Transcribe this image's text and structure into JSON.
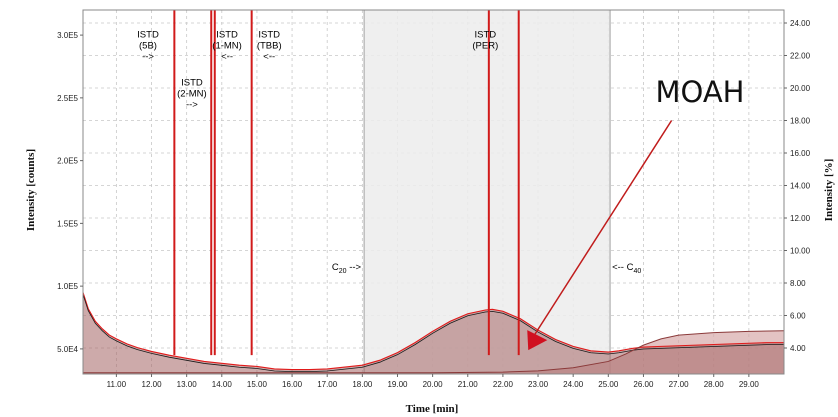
{
  "chart_data": {
    "type": "line",
    "xlabel": "Time [min]",
    "ylabel": "Intensity [counts]",
    "y2label": "Intensity [%]",
    "xlim": [
      10.05,
      30.0
    ],
    "ylim": [
      30000,
      320000
    ],
    "y2lim": [
      2.4,
      24.8
    ],
    "x_ticks": [
      "11.00",
      "12.00",
      "13.00",
      "14.00",
      "15.00",
      "16.00",
      "17.00",
      "18.00",
      "19.00",
      "20.00",
      "21.00",
      "22.00",
      "23.00",
      "24.00",
      "25.00",
      "26.00",
      "27.00",
      "28.00",
      "29.00"
    ],
    "y_ticks": [
      {
        "v": 50000,
        "label": "5.0E4"
      },
      {
        "v": 100000,
        "label": "1.0E5"
      },
      {
        "v": 150000,
        "label": "1.5E5"
      },
      {
        "v": 200000,
        "label": "2.0E5"
      },
      {
        "v": 250000,
        "label": "2.5E5"
      },
      {
        "v": 300000,
        "label": "3.0E5"
      }
    ],
    "y2_ticks": [
      {
        "v": 4,
        "label": "4.00"
      },
      {
        "v": 6,
        "label": "6.00"
      },
      {
        "v": 8,
        "label": "8.00"
      },
      {
        "v": 10,
        "label": "10.00"
      },
      {
        "v": 12,
        "label": "12.00"
      },
      {
        "v": 14,
        "label": "14.00"
      },
      {
        "v": 16,
        "label": "16.00"
      },
      {
        "v": 18,
        "label": "18.00"
      },
      {
        "v": 20,
        "label": "20.00"
      },
      {
        "v": 22,
        "label": "22.00"
      },
      {
        "v": 24,
        "label": "24.00"
      }
    ],
    "grid": true,
    "shaded_region": {
      "x_start": 18.05,
      "x_end": 25.05
    },
    "region_start_label": {
      "x": 18.05,
      "text": "C20 -->",
      "base": "C",
      "sub": "20",
      "suffix": " -->"
    },
    "region_end_label": {
      "x": 25.05,
      "text": "<-- C40",
      "prefix": "<-- C",
      "sub": "40"
    },
    "annotation": {
      "text": "MOAH",
      "arrow_from": [
        26.8,
        18.0
      ],
      "arrow_to": [
        22.75,
        4.3
      ]
    },
    "series": [
      {
        "name": "chromatogram",
        "color": "#e11a1a",
        "x": [
          10.05,
          10.2,
          10.4,
          10.6,
          10.8,
          11.0,
          11.3,
          11.6,
          12.0,
          12.5,
          13.0,
          13.5,
          14.0,
          14.5,
          15.0,
          15.5,
          16.0,
          16.5,
          17.0,
          17.5,
          18.0,
          18.5,
          19.0,
          19.5,
          20.0,
          20.5,
          21.0,
          21.5,
          21.7,
          22.0,
          22.5,
          23.0,
          23.5,
          24.0,
          24.5,
          25.0,
          25.3,
          25.7,
          26.0,
          26.5,
          27.0,
          27.5,
          28.0,
          28.5,
          29.0,
          29.5,
          30.0
        ],
        "y": [
          95000,
          82000,
          72000,
          66000,
          61000,
          58000,
          54000,
          51000,
          48000,
          45000,
          42500,
          40000,
          38500,
          37000,
          36000,
          34000,
          33500,
          33500,
          34000,
          35500,
          37000,
          41000,
          47000,
          55000,
          64000,
          72000,
          78000,
          81000,
          81500,
          80000,
          74000,
          65000,
          57500,
          52000,
          48500,
          47500,
          48500,
          50500,
          51500,
          52000,
          52500,
          53000,
          53500,
          54000,
          54500,
          55000,
          55000
        ]
      },
      {
        "name": "baseline",
        "color": "#8b3a3a",
        "x": [
          10.05,
          12.0,
          14.0,
          16.0,
          18.0,
          20.0,
          22.0,
          23.0,
          24.0,
          25.0,
          25.5,
          26.0,
          26.5,
          27.0,
          28.0,
          29.0,
          30.0
        ],
        "y": [
          31000,
          31000,
          31000,
          31000,
          31000,
          31000,
          31500,
          32500,
          35000,
          40000,
          46000,
          53000,
          58000,
          61000,
          63000,
          64000,
          64500
        ]
      }
    ],
    "peaks": [
      {
        "label_lines": [
          "ISTD",
          "(5B)",
          "-->"
        ],
        "x": 12.65,
        "y": 320000,
        "label_x": 11.9,
        "label_y": 298000
      },
      {
        "label_lines": [
          "ISTD",
          "(2-MN)",
          "-->"
        ],
        "x": 13.7,
        "y": 320000,
        "label_x": 13.15,
        "label_y": 260000
      },
      {
        "label_lines": [
          "ISTD",
          "(1-MN)",
          "<--"
        ],
        "x": 13.8,
        "y": 320000,
        "label_x": 14.15,
        "label_y": 298000
      },
      {
        "label_lines": [
          "ISTD",
          "(TBB)",
          "<--"
        ],
        "x": 14.85,
        "y": 320000,
        "label_x": 15.35,
        "label_y": 298000
      },
      {
        "label_lines": [
          "ISTD",
          "(PER)"
        ],
        "x": 21.6,
        "y": 320000,
        "label_x": 21.5,
        "label_y": 298000
      },
      {
        "x": 22.45,
        "y": 320000
      }
    ]
  }
}
